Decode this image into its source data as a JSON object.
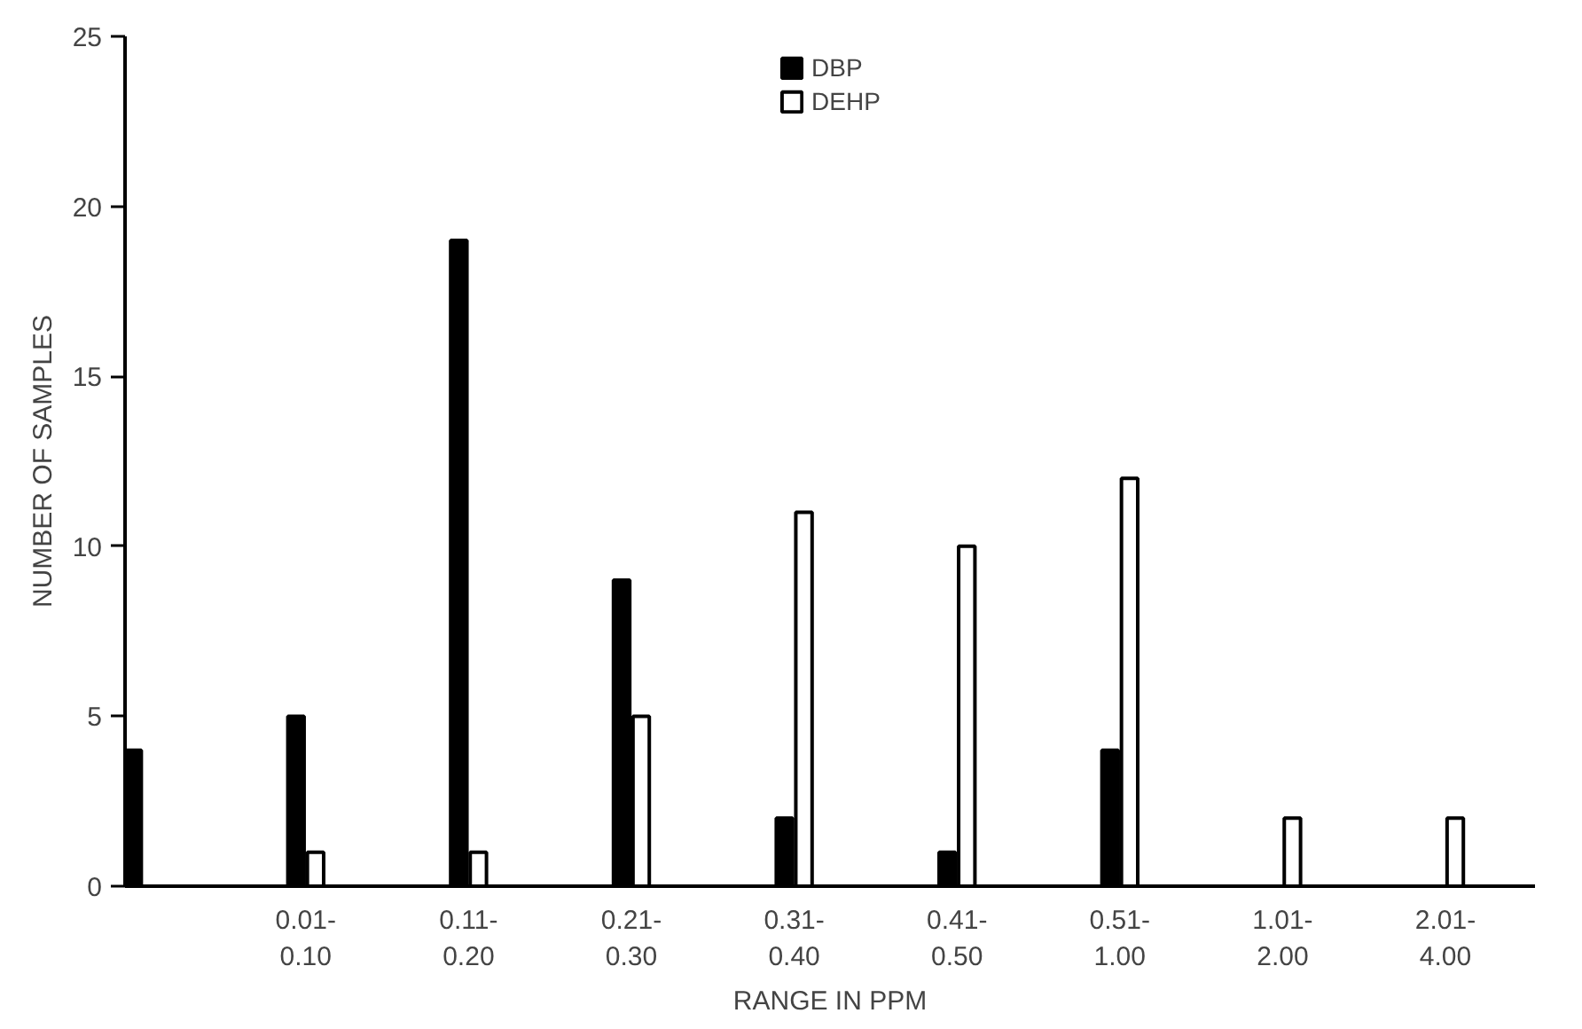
{
  "chart_data": {
    "type": "bar",
    "xlabel": "RANGE IN PPM",
    "ylabel": "NUMBER OF SAMPLES",
    "categories": [
      null,
      "0.01-\n0.10",
      "0.11-\n0.20",
      "0.21-\n0.30",
      "0.31-\n0.40",
      "0.41-\n0.50",
      "0.51-\n1.00",
      "1.01-\n2.00",
      "2.01-\n4.00"
    ],
    "series": [
      {
        "name": "DBP",
        "color": "#000000",
        "values": [
          4,
          5,
          19,
          9,
          2,
          1,
          4,
          null,
          null
        ]
      },
      {
        "name": "DEHP",
        "color": "#ffffff",
        "values": [
          null,
          1,
          1,
          5,
          11,
          10,
          12,
          2,
          2
        ]
      }
    ],
    "ylim": [
      0,
      25
    ],
    "yticks": [
      0,
      5,
      10,
      15,
      20,
      25
    ],
    "grid": false,
    "legend": "top"
  }
}
